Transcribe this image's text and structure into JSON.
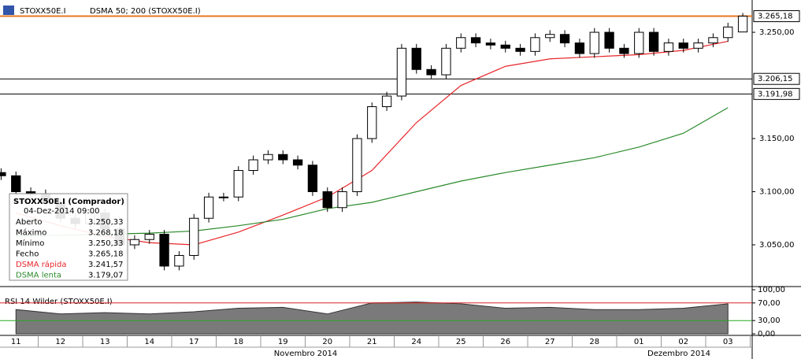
{
  "toolbar": {
    "symbol": "STOXX50E.I",
    "indicator": "DSMA 50; 200 (STOXX50E.I)"
  },
  "chart_data": {
    "type": "candlestick",
    "days": [
      "11",
      "12",
      "13",
      "14",
      "17",
      "18",
      "19",
      "20",
      "21",
      "24",
      "25",
      "26",
      "27",
      "28",
      "01",
      "02",
      "03"
    ],
    "months": [
      "Novembro 2014",
      "Dezembro 2014"
    ],
    "open": [
      3118,
      3115,
      3100,
      3098,
      3090,
      3075,
      3070,
      3080,
      3065,
      3050,
      3055,
      3060,
      3030,
      3040,
      3075,
      3095,
      3095,
      3120,
      3130,
      3135,
      3130,
      3125,
      3100,
      3085,
      3100,
      3150,
      3180,
      3190,
      3235,
      3215,
      3210,
      3235,
      3245,
      3240,
      3238,
      3235,
      3232,
      3245,
      3248,
      3240,
      3230,
      3250,
      3235,
      3230,
      3250,
      3232,
      3240,
      3235,
      3240,
      3245,
      3250.33
    ],
    "high": [
      3122,
      3119,
      3104,
      3102,
      3094,
      3079,
      3084,
      3084,
      3069,
      3059,
      3064,
      3064,
      3044,
      3079,
      3099,
      3099,
      3124,
      3134,
      3139,
      3139,
      3134,
      3129,
      3104,
      3104,
      3154,
      3184,
      3194,
      3239,
      3239,
      3219,
      3239,
      3249,
      3249,
      3244,
      3242,
      3239,
      3249,
      3252,
      3252,
      3244,
      3254,
      3254,
      3239,
      3254,
      3254,
      3244,
      3244,
      3244,
      3249,
      3259,
      3268.18
    ],
    "low": [
      3111,
      3096,
      3094,
      3086,
      3071,
      3066,
      3066,
      3061,
      3046,
      3046,
      3051,
      3026,
      3026,
      3036,
      3071,
      3091,
      3091,
      3116,
      3126,
      3126,
      3121,
      3096,
      3081,
      3081,
      3096,
      3146,
      3176,
      3186,
      3211,
      3206,
      3206,
      3231,
      3236,
      3234,
      3231,
      3228,
      3228,
      3241,
      3236,
      3226,
      3226,
      3231,
      3226,
      3226,
      3228,
      3228,
      3231,
      3231,
      3236,
      3241,
      3250.33
    ],
    "close": [
      3115,
      3100,
      3098,
      3090,
      3075,
      3070,
      3080,
      3065,
      3050,
      3055,
      3060,
      3030,
      3040,
      3075,
      3095,
      3095,
      3120,
      3130,
      3135,
      3130,
      3125,
      3100,
      3085,
      3100,
      3150,
      3180,
      3190,
      3235,
      3215,
      3210,
      3235,
      3245,
      3240,
      3238,
      3235,
      3232,
      3245,
      3248,
      3240,
      3230,
      3250,
      3235,
      3230,
      3250,
      3232,
      3240,
      3235,
      3240,
      3245,
      3255,
      3265.18
    ],
    "series": [
      {
        "name": "DSMA rápida",
        "color": "#e8262a",
        "values": [
          3080,
          3068,
          3058,
          3052,
          3050,
          3062,
          3078,
          3095,
          3120,
          3165,
          3200,
          3218,
          3225,
          3227,
          3229,
          3233,
          3241.57
        ]
      },
      {
        "name": "DSMA lenta",
        "color": "#2a8a2a",
        "values": [
          3058,
          3059,
          3060,
          3061,
          3063,
          3068,
          3074,
          3084,
          3090,
          3100,
          3110,
          3118,
          3125,
          3132,
          3142,
          3155,
          3179.07
        ]
      }
    ],
    "ylim": [
      3012.2,
      3280.4
    ],
    "yticks": [
      {
        "value": 3050,
        "label": "3.050,00"
      },
      {
        "value": 3100,
        "label": "3.100,00"
      },
      {
        "value": 3150,
        "label": "3.150,00"
      },
      {
        "value": 3250,
        "label": "3.250,00"
      }
    ],
    "levels": [
      {
        "value": 3206.15,
        "label": "3.206,15"
      },
      {
        "value": 3191.98,
        "label": "3.191,98"
      }
    ],
    "last": {
      "value": 3265.18,
      "label": "3.265,18"
    },
    "rsi": {
      "title": "RSI 14 Wilder (STOXX50E.I)",
      "values": [
        55,
        45,
        48,
        45,
        50,
        58,
        60,
        45,
        70,
        72,
        68,
        58,
        60,
        55,
        55,
        58,
        68
      ],
      "ylim": [
        0,
        100
      ],
      "yticks": [
        {
          "value": 0,
          "label": "0,00"
        },
        {
          "value": 30,
          "label": "30,00"
        },
        {
          "value": 70,
          "label": "70,00"
        },
        {
          "value": 100,
          "label": "100,00"
        }
      ]
    }
  },
  "tooltip": {
    "title": "STOXX50E.I (Comprador)",
    "date": "04-Dez-2014 09:00",
    "rows": [
      {
        "label": "Aberto",
        "value": "3.250,33"
      },
      {
        "label": "Máximo",
        "value": "3.268,18"
      },
      {
        "label": "Mínimo",
        "value": "3.250,33"
      },
      {
        "label": "Fecho",
        "value": "3.265,18"
      },
      {
        "label": "DSMA rápida",
        "value": "3.241,57"
      },
      {
        "label": "DSMA lenta",
        "value": "3.179,07"
      }
    ]
  }
}
